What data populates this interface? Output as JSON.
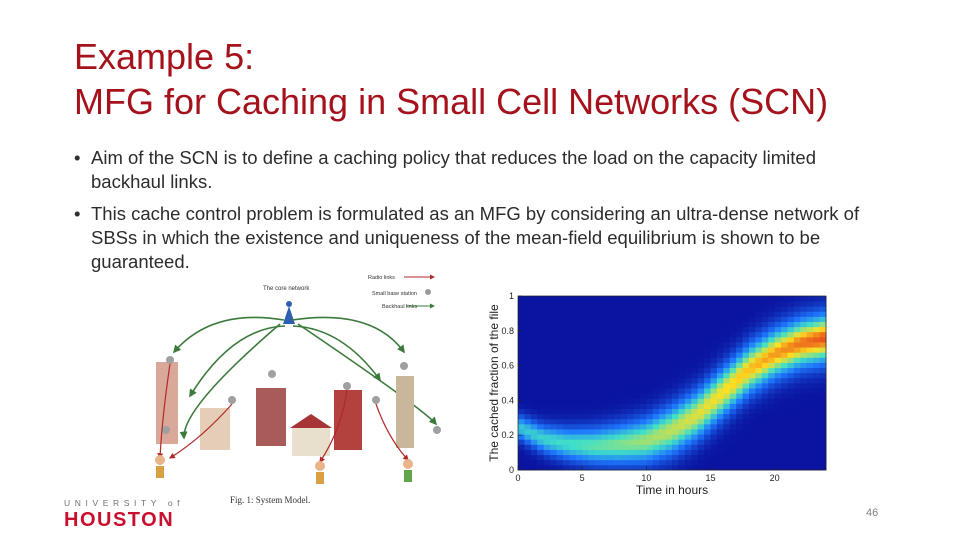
{
  "slide": {
    "title_line1": "Example 5:",
    "title_line2": "MFG for Caching in Small Cell Networks (SCN)",
    "bullets": [
      "Aim of the SCN is to define a caching policy that reduces the load on the capacity limited backhaul links.",
      "This cache control problem is formulated as an MFG by considering an ultra-dense network of SBSs in which the existence and uniqueness of the mean-field equilibrium is shown to be guaranteed."
    ],
    "page_number": "46",
    "logo_top": "UNIVERSITY of",
    "logo_main": "HOUSTON"
  },
  "figure_left": {
    "core_label": "The core network",
    "legend": [
      "Radio links",
      "Small base station",
      "Backhaul links"
    ],
    "caption": "Fig. 1: System Model."
  },
  "chart_data": {
    "type": "heatmap",
    "title": "",
    "xlabel": "Time in hours",
    "ylabel": "The cached fraction of the file",
    "xlim": [
      0,
      24
    ],
    "ylim": [
      0,
      1
    ],
    "x_ticks": [
      "0",
      "5",
      "10",
      "15",
      "20"
    ],
    "y_ticks": [
      "0",
      "0.2",
      "0.4",
      "0.6",
      "0.8",
      "1"
    ],
    "ridge": {
      "x": [
        0,
        2,
        4,
        6,
        8,
        10,
        12,
        14,
        16,
        18,
        20,
        22,
        24
      ],
      "y": [
        0.25,
        0.18,
        0.15,
        0.14,
        0.15,
        0.17,
        0.23,
        0.32,
        0.45,
        0.58,
        0.67,
        0.73,
        0.76
      ]
    },
    "colors": {
      "background": "#0a14a0",
      "low": "#1e78ff",
      "mid": "#40e0c8",
      "high": "#ffe020",
      "peak": "#e8501a"
    }
  }
}
